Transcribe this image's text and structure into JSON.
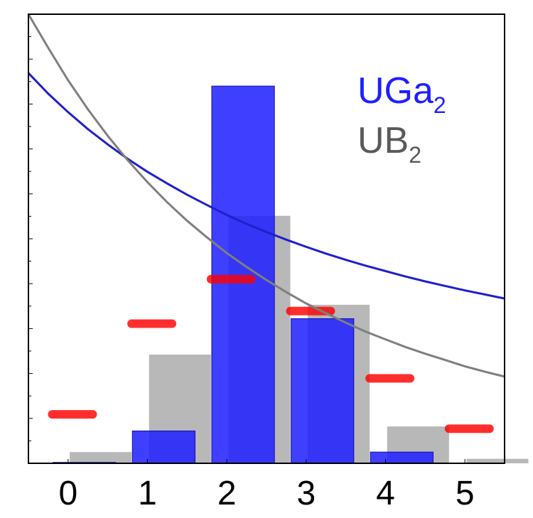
{
  "chart_data": {
    "type": "bar",
    "categories": [
      "0",
      "1",
      "2",
      "3",
      "4",
      "5"
    ],
    "title": "",
    "xlabel": "",
    "ylabel": "",
    "ylim": [
      0,
      1
    ],
    "grid": false,
    "legend_placement": "top-right",
    "series": [
      {
        "name": "UGa",
        "subscript": "2",
        "color": "#1f1fff",
        "values": [
          0.002,
          0.072,
          0.84,
          0.322,
          0.025,
          0.0
        ]
      },
      {
        "name": "UB",
        "subscript": "2",
        "color": "#b8b8b8",
        "values": [
          0.025,
          0.242,
          0.551,
          0.353,
          0.082,
          0.01
        ]
      }
    ],
    "markers": {
      "color": "#ff0000",
      "values": [
        0.109,
        0.311,
        0.41,
        0.339,
        0.189,
        0.077
      ]
    },
    "curves": [
      {
        "color": "#1f1fcc",
        "x": [
          -0.5,
          -0.25,
          0.0,
          0.25,
          0.5,
          0.75,
          1.0,
          1.25,
          1.5,
          1.75,
          2.0,
          2.25,
          2.5,
          2.75,
          3.0,
          3.25,
          3.5,
          3.75,
          4.0,
          4.25,
          4.5,
          4.75,
          5.0,
          5.25,
          5.5
        ],
        "y": [
          0.869,
          0.823,
          0.782,
          0.744,
          0.71,
          0.678,
          0.649,
          0.623,
          0.598,
          0.575,
          0.553,
          0.533,
          0.515,
          0.498,
          0.482,
          0.467,
          0.453,
          0.44,
          0.428,
          0.416,
          0.405,
          0.395,
          0.385,
          0.376,
          0.367
        ]
      },
      {
        "color": "#7f7f7f",
        "x": [
          -0.5,
          -0.25,
          0.0,
          0.25,
          0.5,
          0.75,
          1.0,
          1.25,
          1.5,
          1.75,
          2.0,
          2.25,
          2.5,
          2.75,
          3.0,
          3.25,
          3.5,
          3.75,
          4.0,
          4.25,
          4.5,
          4.75,
          5.0,
          5.25,
          5.5
        ],
        "y": [
          1.005,
          0.925,
          0.853,
          0.788,
          0.729,
          0.675,
          0.626,
          0.581,
          0.54,
          0.503,
          0.468,
          0.437,
          0.408,
          0.381,
          0.356,
          0.334,
          0.313,
          0.293,
          0.276,
          0.259,
          0.244,
          0.23,
          0.216,
          0.204,
          0.193
        ]
      }
    ]
  }
}
